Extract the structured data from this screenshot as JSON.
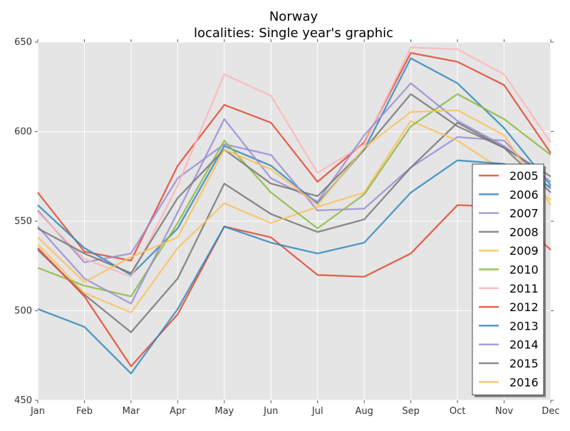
{
  "chart_data": {
    "type": "line",
    "title": "Norway",
    "subtitle": "localities: Single year's graphic",
    "xlabel": "",
    "ylabel": "",
    "categories": [
      "Jan",
      "Feb",
      "Mar",
      "Apr",
      "May",
      "Jun",
      "Jul",
      "Aug",
      "Sep",
      "Oct",
      "Nov",
      "Dec"
    ],
    "ylim": [
      450,
      650
    ],
    "yticks": [
      450,
      500,
      550,
      600,
      650
    ],
    "grid": true,
    "background": "#e5e5e5",
    "legend_position": "right",
    "series": [
      {
        "name": "2005",
        "color": "#e24a33",
        "values": [
          566,
          533,
          528,
          581,
          615,
          605,
          572,
          594,
          644,
          639,
          626,
          588
        ]
      },
      {
        "name": "2006",
        "color": "#348abd",
        "values": [
          559,
          535,
          520,
          546,
          592,
          581,
          560,
          590,
          641,
          627,
          602,
          570
        ]
      },
      {
        "name": "2007",
        "color": "#988ed5",
        "values": [
          556,
          527,
          532,
          574,
          593,
          587,
          556,
          557,
          580,
          597,
          595,
          568
        ]
      },
      {
        "name": "2008",
        "color": "#777777",
        "values": [
          534,
          509,
          488,
          518,
          571,
          554,
          544,
          551,
          580,
          605,
          591,
          566
        ]
      },
      {
        "name": "2009",
        "color": "#fbc15e",
        "values": [
          537,
          510,
          499,
          535,
          560,
          549,
          558,
          566,
          606,
          595,
          578,
          562
        ]
      },
      {
        "name": "2010",
        "color": "#8eba42",
        "values": [
          524,
          514,
          508,
          549,
          595,
          566,
          546,
          565,
          603,
          621,
          607,
          587
        ]
      },
      {
        "name": "2011",
        "color": "#ffb5b8",
        "values": [
          555,
          529,
          519,
          570,
          632,
          620,
          577,
          593,
          647,
          646,
          632,
          594
        ]
      },
      {
        "name": "2012",
        "color": "#e24a33",
        "values": [
          535,
          508,
          469,
          498,
          547,
          541,
          520,
          519,
          532,
          559,
          558,
          534
        ]
      },
      {
        "name": "2013",
        "color": "#348abd",
        "values": [
          501,
          491,
          465,
          501,
          547,
          538,
          532,
          538,
          566,
          584,
          582,
          569
        ]
      },
      {
        "name": "2014",
        "color": "#988ed5",
        "values": [
          547,
          518,
          504,
          555,
          607,
          574,
          561,
          598,
          627,
          606,
          592,
          572
        ]
      },
      {
        "name": "2015",
        "color": "#777777",
        "values": [
          546,
          532,
          521,
          563,
          590,
          571,
          564,
          590,
          621,
          603,
          591,
          575
        ]
      },
      {
        "name": "2016",
        "color": "#fbc15e",
        "values": [
          541,
          516,
          530,
          541,
          590,
          579,
          559,
          591,
          611,
          612,
          598,
          559
        ]
      }
    ]
  }
}
